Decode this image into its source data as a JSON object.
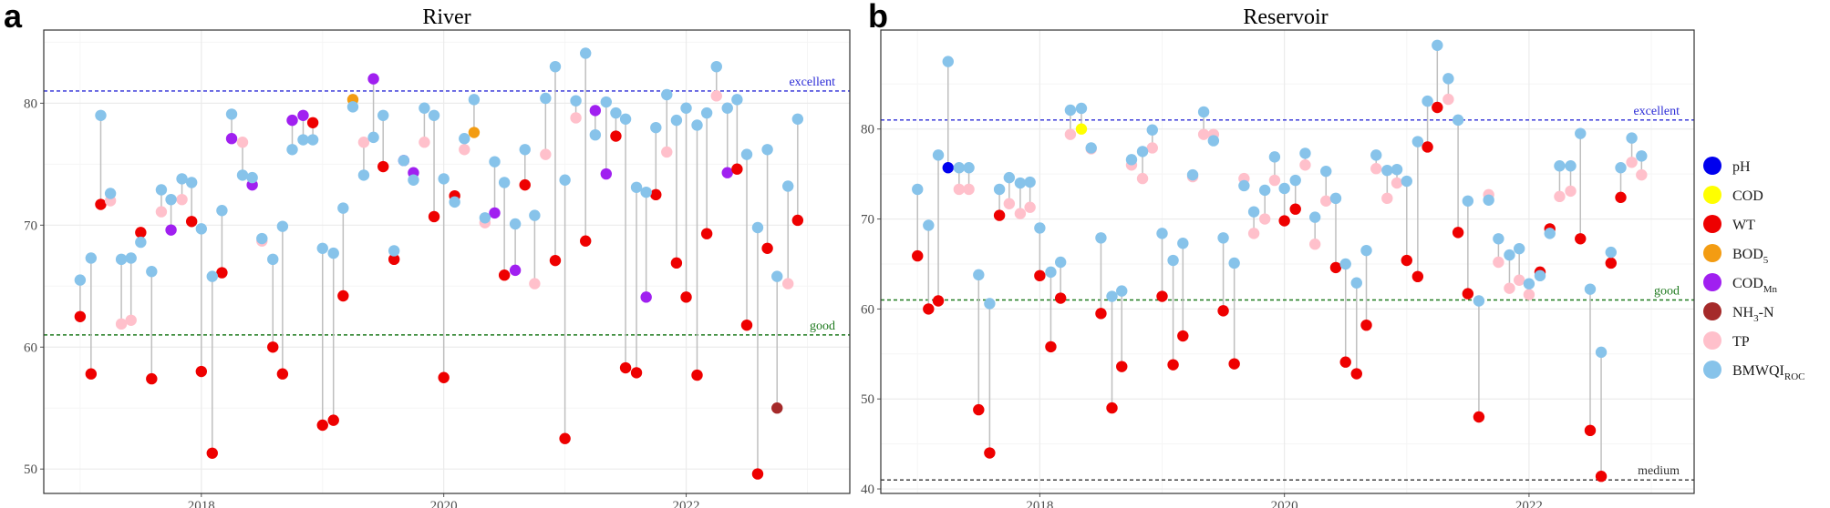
{
  "chart_data": [
    {
      "type": "scatter",
      "panel_label": "a",
      "title": "River",
      "ylim": [
        48,
        86
      ],
      "xlim": [
        2016.7,
        2023.35
      ],
      "x_ticks": [
        2018,
        2020,
        2022
      ],
      "y_ticks": [
        50,
        60,
        70,
        80
      ],
      "grid": true,
      "reference_lines": [
        {
          "label": "excellent",
          "value": 81,
          "color": "#2b2bd6"
        },
        {
          "label": "good",
          "value": 61,
          "color": "#1f7a1f"
        }
      ],
      "points": [
        {
          "x": 2017.0,
          "b": 65.5,
          "f": 62.5,
          "fc": "WT"
        },
        {
          "x": 2017.09,
          "b": 67.3,
          "f": 57.8,
          "fc": "WT"
        },
        {
          "x": 2017.17,
          "b": 79.0,
          "f": 71.7,
          "fc": "WT"
        },
        {
          "x": 2017.25,
          "b": 72.6,
          "f": 72.0,
          "fc": "TP"
        },
        {
          "x": 2017.34,
          "b": 67.2,
          "f": 61.9,
          "fc": "TP"
        },
        {
          "x": 2017.42,
          "b": 67.3,
          "f": 62.2,
          "fc": "TP"
        },
        {
          "x": 2017.5,
          "b": 68.6,
          "f": 69.4,
          "fc": "WT"
        },
        {
          "x": 2017.59,
          "b": 66.2,
          "f": 57.4,
          "fc": "WT"
        },
        {
          "x": 2017.67,
          "b": 72.9,
          "f": 71.1,
          "fc": "TP"
        },
        {
          "x": 2017.75,
          "b": 72.1,
          "f": 69.6,
          "fc": "CODMn"
        },
        {
          "x": 2017.84,
          "b": 73.8,
          "f": 72.1,
          "fc": "TP"
        },
        {
          "x": 2017.92,
          "b": 73.5,
          "f": 70.3,
          "fc": "WT"
        },
        {
          "x": 2018.0,
          "b": 69.7,
          "f": 58.0,
          "fc": "WT"
        },
        {
          "x": 2018.09,
          "b": 65.8,
          "f": 51.3,
          "fc": "WT"
        },
        {
          "x": 2018.17,
          "b": 71.2,
          "f": 66.1,
          "fc": "WT"
        },
        {
          "x": 2018.25,
          "b": 79.1,
          "f": 77.1,
          "fc": "CODMn"
        },
        {
          "x": 2018.34,
          "b": 74.1,
          "f": 76.8,
          "fc": "TP"
        },
        {
          "x": 2018.42,
          "b": 73.9,
          "f": 73.3,
          "fc": "CODMn"
        },
        {
          "x": 2018.5,
          "b": 68.9,
          "f": 68.7,
          "fc": "TP"
        },
        {
          "x": 2018.59,
          "b": 67.2,
          "f": 60.0,
          "fc": "WT"
        },
        {
          "x": 2018.67,
          "b": 69.9,
          "f": 57.8,
          "fc": "WT"
        },
        {
          "x": 2018.75,
          "b": 76.2,
          "f": 78.6,
          "fc": "CODMn"
        },
        {
          "x": 2018.84,
          "b": 77.0,
          "f": 79.0,
          "fc": "CODMn"
        },
        {
          "x": 2018.92,
          "b": 77.0,
          "f": 78.4,
          "fc": "WT"
        },
        {
          "x": 2019.0,
          "b": 68.1,
          "f": 53.6,
          "fc": "WT"
        },
        {
          "x": 2019.09,
          "b": 67.7,
          "f": 54.0,
          "fc": "WT"
        },
        {
          "x": 2019.17,
          "b": 71.4,
          "f": 64.2,
          "fc": "WT"
        },
        {
          "x": 2019.25,
          "b": 79.7,
          "f": 80.3,
          "fc": "BOD5"
        },
        {
          "x": 2019.34,
          "b": 74.1,
          "f": 76.8,
          "fc": "TP"
        },
        {
          "x": 2019.42,
          "b": 77.2,
          "f": 82.0,
          "fc": "CODMn"
        },
        {
          "x": 2019.5,
          "b": 79.0,
          "f": 74.8,
          "fc": "WT"
        },
        {
          "x": 2019.59,
          "b": 67.9,
          "f": 67.2,
          "fc": "WT"
        },
        {
          "x": 2019.67,
          "b": 75.3,
          "f": 75.3,
          "fc": "CODMn"
        },
        {
          "x": 2019.75,
          "b": 73.7,
          "f": 74.3,
          "fc": "CODMn"
        },
        {
          "x": 2019.84,
          "b": 79.6,
          "f": 76.8,
          "fc": "TP"
        },
        {
          "x": 2019.92,
          "b": 79.0,
          "f": 70.7,
          "fc": "WT"
        },
        {
          "x": 2020.0,
          "b": 73.8,
          "f": 57.5,
          "fc": "WT"
        },
        {
          "x": 2020.09,
          "b": 71.9,
          "f": 72.4,
          "fc": "WT"
        },
        {
          "x": 2020.17,
          "b": 77.1,
          "f": 76.2,
          "fc": "TP"
        },
        {
          "x": 2020.25,
          "b": 80.3,
          "f": 77.6,
          "fc": "BOD5"
        },
        {
          "x": 2020.34,
          "b": 70.6,
          "f": 70.2,
          "fc": "TP"
        },
        {
          "x": 2020.42,
          "b": 75.2,
          "f": 71.0,
          "fc": "CODMn"
        },
        {
          "x": 2020.5,
          "b": 73.5,
          "f": 65.9,
          "fc": "WT"
        },
        {
          "x": 2020.59,
          "b": 70.1,
          "f": 66.3,
          "fc": "CODMn"
        },
        {
          "x": 2020.67,
          "b": 76.2,
          "f": 73.3,
          "fc": "WT"
        },
        {
          "x": 2020.75,
          "b": 70.8,
          "f": 65.2,
          "fc": "TP"
        },
        {
          "x": 2020.84,
          "b": 80.4,
          "f": 75.8,
          "fc": "TP"
        },
        {
          "x": 2020.92,
          "b": 83.0,
          "f": 67.1,
          "fc": "WT"
        },
        {
          "x": 2021.0,
          "b": 73.7,
          "f": 52.5,
          "fc": "WT"
        },
        {
          "x": 2021.09,
          "b": 80.2,
          "f": 78.8,
          "fc": "TP"
        },
        {
          "x": 2021.17,
          "b": 84.1,
          "f": 68.7,
          "fc": "WT"
        },
        {
          "x": 2021.25,
          "b": 77.4,
          "f": 79.4,
          "fc": "CODMn"
        },
        {
          "x": 2021.34,
          "b": 80.1,
          "f": 74.2,
          "fc": "CODMn"
        },
        {
          "x": 2021.42,
          "b": 79.2,
          "f": 77.3,
          "fc": "WT"
        },
        {
          "x": 2021.5,
          "b": 78.7,
          "f": 58.3,
          "fc": "WT"
        },
        {
          "x": 2021.59,
          "b": 73.1,
          "f": 57.9,
          "fc": "WT"
        },
        {
          "x": 2021.67,
          "b": 72.7,
          "f": 64.1,
          "fc": "CODMn"
        },
        {
          "x": 2021.75,
          "b": 78.0,
          "f": 72.5,
          "fc": "WT"
        },
        {
          "x": 2021.84,
          "b": 80.7,
          "f": 76.0,
          "fc": "TP"
        },
        {
          "x": 2021.92,
          "b": 78.6,
          "f": 66.9,
          "fc": "WT"
        },
        {
          "x": 2022.0,
          "b": 79.6,
          "f": 64.1,
          "fc": "WT"
        },
        {
          "x": 2022.09,
          "b": 78.2,
          "f": 57.7,
          "fc": "WT"
        },
        {
          "x": 2022.17,
          "b": 79.2,
          "f": 69.3,
          "fc": "WT"
        },
        {
          "x": 2022.25,
          "b": 83.0,
          "f": 80.6,
          "fc": "TP"
        },
        {
          "x": 2022.34,
          "b": 79.6,
          "f": 74.3,
          "fc": "CODMn"
        },
        {
          "x": 2022.42,
          "b": 80.3,
          "f": 74.6,
          "fc": "WT"
        },
        {
          "x": 2022.5,
          "b": 75.8,
          "f": 61.8,
          "fc": "WT"
        },
        {
          "x": 2022.59,
          "b": 69.8,
          "f": 49.6,
          "fc": "WT"
        },
        {
          "x": 2022.67,
          "b": 76.2,
          "f": 68.1,
          "fc": "WT"
        },
        {
          "x": 2022.75,
          "b": 65.8,
          "f": 55.0,
          "fc": "NH3N"
        },
        {
          "x": 2022.84,
          "b": 73.2,
          "f": 65.2,
          "fc": "TP"
        },
        {
          "x": 2022.92,
          "b": 78.7,
          "f": 70.4,
          "fc": "WT"
        }
      ]
    },
    {
      "type": "scatter",
      "panel_label": "b",
      "title": "Reservoir",
      "ylim": [
        39.5,
        91
      ],
      "xlim": [
        2016.7,
        2023.35
      ],
      "x_ticks": [
        2018,
        2020,
        2022
      ],
      "y_ticks": [
        40,
        50,
        60,
        70,
        80
      ],
      "grid": true,
      "reference_lines": [
        {
          "label": "excellent",
          "value": 81,
          "color": "#2b2bd6"
        },
        {
          "label": "good",
          "value": 61,
          "color": "#1f7a1f"
        },
        {
          "label": "medium",
          "value": 41,
          "color": "#333333"
        }
      ],
      "points": [
        {
          "x": 2017.0,
          "b": 73.3,
          "f": 65.9,
          "fc": "WT"
        },
        {
          "x": 2017.09,
          "b": 69.3,
          "f": 60.0,
          "fc": "WT"
        },
        {
          "x": 2017.17,
          "b": 77.1,
          "f": 60.9,
          "fc": "WT"
        },
        {
          "x": 2017.25,
          "b": 87.5,
          "f": 75.7,
          "fc": "pH"
        },
        {
          "x": 2017.34,
          "b": 75.7,
          "f": 73.3,
          "fc": "TP"
        },
        {
          "x": 2017.42,
          "b": 75.7,
          "f": 73.3,
          "fc": "TP"
        },
        {
          "x": 2017.5,
          "b": 63.8,
          "f": 48.8,
          "fc": "WT"
        },
        {
          "x": 2017.59,
          "b": 60.6,
          "f": 44.0,
          "fc": "WT"
        },
        {
          "x": 2017.67,
          "b": 73.3,
          "f": 70.4,
          "fc": "WT"
        },
        {
          "x": 2017.75,
          "b": 74.6,
          "f": 71.7,
          "fc": "TP"
        },
        {
          "x": 2017.84,
          "b": 74.0,
          "f": 70.6,
          "fc": "TP"
        },
        {
          "x": 2017.92,
          "b": 74.1,
          "f": 71.3,
          "fc": "TP"
        },
        {
          "x": 2018.0,
          "b": 69.0,
          "f": 63.7,
          "fc": "WT"
        },
        {
          "x": 2018.09,
          "b": 64.1,
          "f": 55.8,
          "fc": "WT"
        },
        {
          "x": 2018.17,
          "b": 65.2,
          "f": 61.2,
          "fc": "WT"
        },
        {
          "x": 2018.25,
          "b": 82.1,
          "f": 79.4,
          "fc": "TP"
        },
        {
          "x": 2018.34,
          "b": 82.3,
          "f": 80.0,
          "fc": "COD"
        },
        {
          "x": 2018.42,
          "b": 77.9,
          "f": 77.8,
          "fc": "TP"
        },
        {
          "x": 2018.5,
          "b": 67.9,
          "f": 59.5,
          "fc": "WT"
        },
        {
          "x": 2018.59,
          "b": 61.4,
          "f": 49.0,
          "fc": "WT"
        },
        {
          "x": 2018.67,
          "b": 62.0,
          "f": 53.6,
          "fc": "WT"
        },
        {
          "x": 2018.75,
          "b": 76.6,
          "f": 76.0,
          "fc": "TP"
        },
        {
          "x": 2018.84,
          "b": 77.5,
          "f": 74.5,
          "fc": "TP"
        },
        {
          "x": 2018.92,
          "b": 79.9,
          "f": 77.9,
          "fc": "TP"
        },
        {
          "x": 2019.0,
          "b": 68.4,
          "f": 61.4,
          "fc": "WT"
        },
        {
          "x": 2019.09,
          "b": 65.4,
          "f": 53.8,
          "fc": "WT"
        },
        {
          "x": 2019.17,
          "b": 67.3,
          "f": 57.0,
          "fc": "WT"
        },
        {
          "x": 2019.25,
          "b": 74.9,
          "f": 74.7,
          "fc": "TP"
        },
        {
          "x": 2019.34,
          "b": 81.9,
          "f": 79.4,
          "fc": "TP"
        },
        {
          "x": 2019.42,
          "b": 78.7,
          "f": 79.4,
          "fc": "TP"
        },
        {
          "x": 2019.5,
          "b": 67.9,
          "f": 59.8,
          "fc": "WT"
        },
        {
          "x": 2019.59,
          "b": 65.1,
          "f": 53.9,
          "fc": "WT"
        },
        {
          "x": 2019.67,
          "b": 73.7,
          "f": 74.5,
          "fc": "TP"
        },
        {
          "x": 2019.75,
          "b": 70.8,
          "f": 68.4,
          "fc": "TP"
        },
        {
          "x": 2019.84,
          "b": 73.2,
          "f": 70.0,
          "fc": "TP"
        },
        {
          "x": 2019.92,
          "b": 76.9,
          "f": 74.3,
          "fc": "TP"
        },
        {
          "x": 2020.0,
          "b": 73.4,
          "f": 69.8,
          "fc": "WT"
        },
        {
          "x": 2020.09,
          "b": 74.3,
          "f": 71.1,
          "fc": "WT"
        },
        {
          "x": 2020.17,
          "b": 77.3,
          "f": 76.0,
          "fc": "TP"
        },
        {
          "x": 2020.25,
          "b": 70.2,
          "f": 67.2,
          "fc": "TP"
        },
        {
          "x": 2020.34,
          "b": 75.3,
          "f": 72.0,
          "fc": "TP"
        },
        {
          "x": 2020.42,
          "b": 72.3,
          "f": 64.6,
          "fc": "WT"
        },
        {
          "x": 2020.5,
          "b": 65.0,
          "f": 54.1,
          "fc": "WT"
        },
        {
          "x": 2020.59,
          "b": 62.9,
          "f": 52.8,
          "fc": "WT"
        },
        {
          "x": 2020.67,
          "b": 66.5,
          "f": 58.2,
          "fc": "WT"
        },
        {
          "x": 2020.75,
          "b": 77.1,
          "f": 75.6,
          "fc": "TP"
        },
        {
          "x": 2020.84,
          "b": 75.4,
          "f": 72.3,
          "fc": "TP"
        },
        {
          "x": 2020.92,
          "b": 75.5,
          "f": 74.0,
          "fc": "TP"
        },
        {
          "x": 2021.0,
          "b": 74.2,
          "f": 65.4,
          "fc": "WT"
        },
        {
          "x": 2021.09,
          "b": 78.6,
          "f": 63.6,
          "fc": "WT"
        },
        {
          "x": 2021.17,
          "b": 83.1,
          "f": 78.0,
          "fc": "WT"
        },
        {
          "x": 2021.25,
          "b": 89.3,
          "f": 82.4,
          "fc": "WT"
        },
        {
          "x": 2021.34,
          "b": 85.6,
          "f": 83.3,
          "fc": "TP"
        },
        {
          "x": 2021.42,
          "b": 81.0,
          "f": 68.5,
          "fc": "WT"
        },
        {
          "x": 2021.5,
          "b": 72.0,
          "f": 61.7,
          "fc": "WT"
        },
        {
          "x": 2021.59,
          "b": 60.9,
          "f": 48.0,
          "fc": "WT"
        },
        {
          "x": 2021.67,
          "b": 72.1,
          "f": 72.7,
          "fc": "TP"
        },
        {
          "x": 2021.75,
          "b": 67.8,
          "f": 65.2,
          "fc": "TP"
        },
        {
          "x": 2021.84,
          "b": 66.0,
          "f": 62.3,
          "fc": "TP"
        },
        {
          "x": 2021.92,
          "b": 66.7,
          "f": 63.2,
          "fc": "TP"
        },
        {
          "x": 2022.0,
          "b": 62.8,
          "f": 61.6,
          "fc": "TP"
        },
        {
          "x": 2022.09,
          "b": 63.7,
          "f": 64.1,
          "fc": "WT"
        },
        {
          "x": 2022.17,
          "b": 68.4,
          "f": 68.9,
          "fc": "WT"
        },
        {
          "x": 2022.25,
          "b": 75.9,
          "f": 72.5,
          "fc": "TP"
        },
        {
          "x": 2022.34,
          "b": 75.9,
          "f": 73.1,
          "fc": "TP"
        },
        {
          "x": 2022.42,
          "b": 79.5,
          "f": 67.8,
          "fc": "WT"
        },
        {
          "x": 2022.5,
          "b": 62.2,
          "f": 46.5,
          "fc": "WT"
        },
        {
          "x": 2022.59,
          "b": 55.2,
          "f": 41.4,
          "fc": "WT"
        },
        {
          "x": 2022.67,
          "b": 66.3,
          "f": 65.1,
          "fc": "WT"
        },
        {
          "x": 2022.75,
          "b": 75.7,
          "f": 72.4,
          "fc": "WT"
        },
        {
          "x": 2022.84,
          "b": 79.0,
          "f": 76.3,
          "fc": "TP"
        },
        {
          "x": 2022.92,
          "b": 77.0,
          "f": 74.9,
          "fc": "TP"
        }
      ]
    }
  ],
  "legend": {
    "items": [
      {
        "key": "pH",
        "label": "pH",
        "sub": "",
        "color": "#0000ee"
      },
      {
        "key": "COD",
        "label": "COD",
        "sub": "",
        "color": "#ffff00"
      },
      {
        "key": "WT",
        "label": "WT",
        "sub": "",
        "color": "#ee0000"
      },
      {
        "key": "BOD5",
        "label": "BOD",
        "sub": "5",
        "color": "#f39c12"
      },
      {
        "key": "CODMn",
        "label": "COD",
        "sub": "Mn",
        "color": "#a020f0"
      },
      {
        "key": "NH3N",
        "label": "NH",
        "sub": "3",
        "suffix": "-N",
        "color": "#a52a2a"
      },
      {
        "key": "TP",
        "label": "TP",
        "sub": "",
        "color": "#ffc0cb"
      },
      {
        "key": "BMWQI",
        "label": "BMWQI",
        "sub": "ROC",
        "color": "#87c3ea"
      }
    ]
  },
  "colors": {
    "stem": "#bfbfbf",
    "grid_major": "#ebebeb",
    "grid_minor": "#f5f5f5",
    "frame": "#333333"
  }
}
